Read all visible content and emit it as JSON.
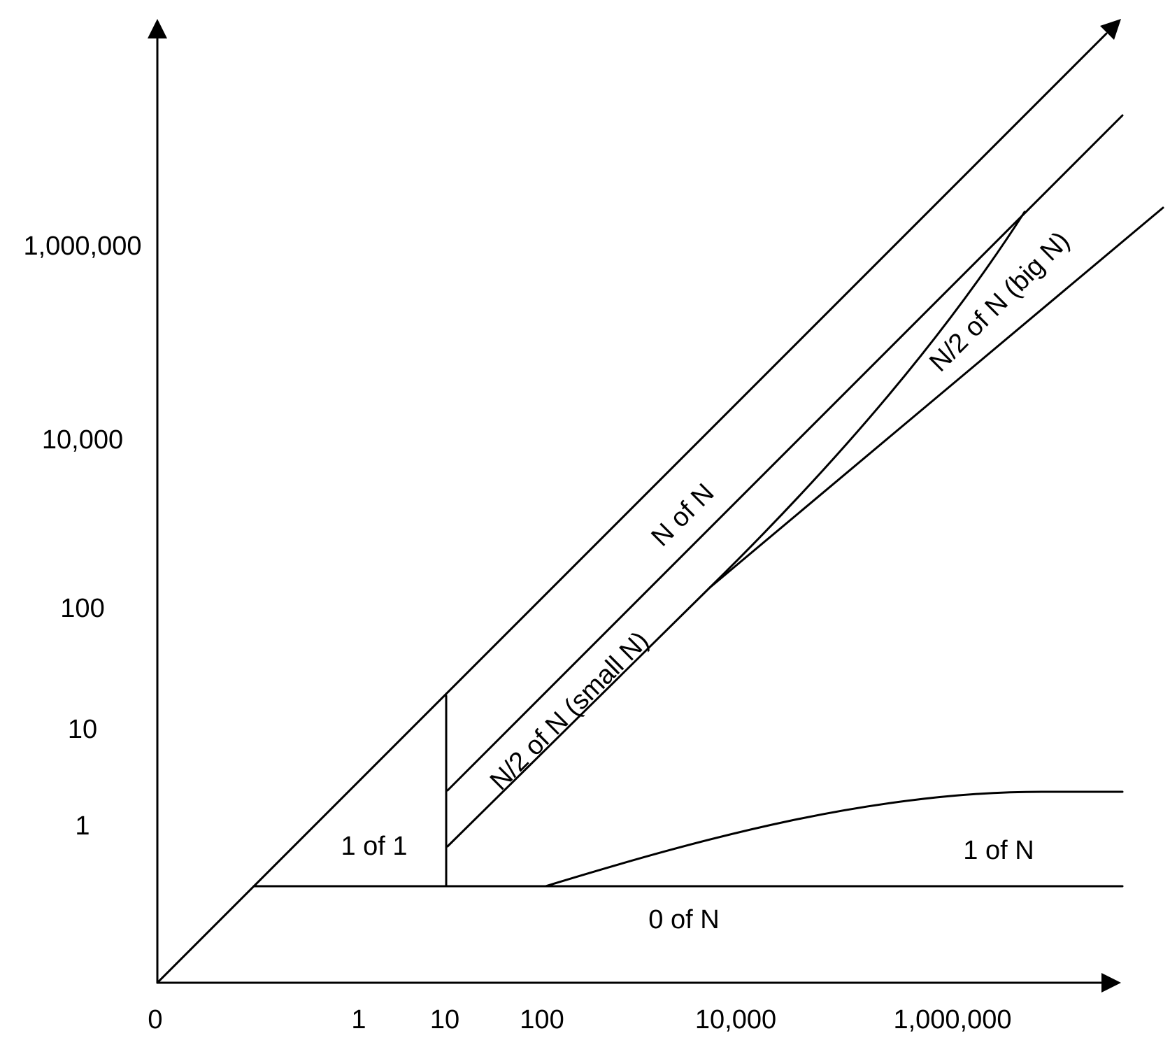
{
  "axes": {
    "x_ticks": [
      "0",
      "1",
      "10",
      "100",
      "10,000",
      "1,000,000"
    ],
    "y_ticks": [
      "1,000,000",
      "10,000",
      "100",
      "10",
      "1"
    ]
  },
  "regions": {
    "n_of_n": "N of N",
    "half_small": "N/2 of N (small N)",
    "half_big": "N/2 of N (big N)",
    "one_of_one": "1 of 1",
    "one_of_n": "1 of N",
    "zero_of_n": "0 of N"
  },
  "colors": {
    "line": "#000000",
    "background": "#ffffff"
  }
}
